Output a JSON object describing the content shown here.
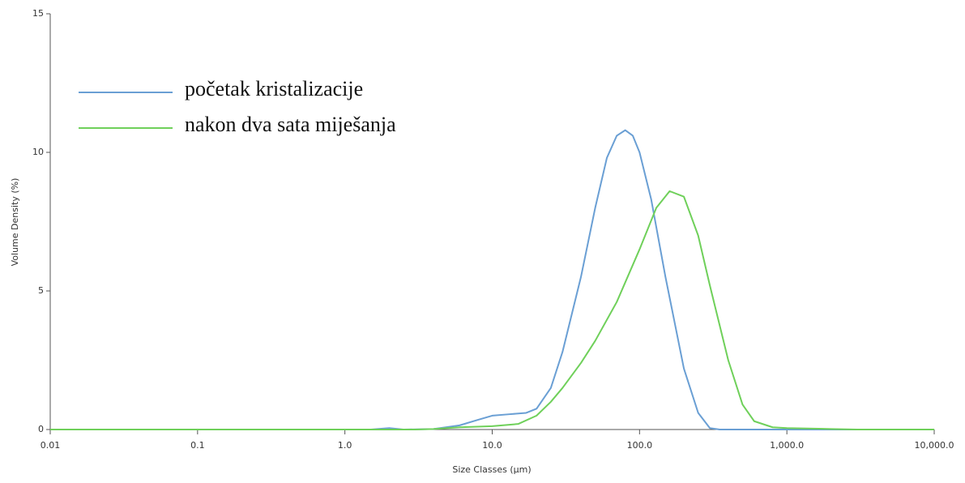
{
  "chart_data": {
    "type": "line",
    "x_label": "Size Classes (µm)",
    "y_label": "Volume Density (%)",
    "x_log": true,
    "xlim": [
      0.01,
      10000
    ],
    "ylim": [
      0,
      15
    ],
    "xticks": [
      0.01,
      0.1,
      {
        "value": 1,
        "label": "1.0"
      },
      {
        "value": 10,
        "label": "10.0"
      },
      {
        "value": 100,
        "label": "100.0"
      },
      {
        "value": 1000,
        "label": "1,000.0"
      },
      {
        "value": 10000,
        "label": "10,000.0"
      }
    ],
    "yticks": [
      0,
      5,
      10,
      15
    ],
    "legend": "upper left",
    "series": [
      {
        "name": "početak kristalizacije",
        "color": "#6a9fd4",
        "x": [
          0.01,
          1.5,
          2,
          2.5,
          4,
          6,
          8,
          10,
          13,
          17,
          20,
          25,
          30,
          40,
          50,
          60,
          70,
          80,
          90,
          100,
          120,
          150,
          200,
          250,
          300,
          350,
          10000
        ],
        "values": [
          0,
          0,
          0.05,
          0,
          0.02,
          0.15,
          0.35,
          0.5,
          0.55,
          0.6,
          0.75,
          1.5,
          2.8,
          5.5,
          8,
          9.8,
          10.6,
          10.8,
          10.6,
          10,
          8.3,
          5.5,
          2.2,
          0.6,
          0.05,
          0,
          0
        ]
      },
      {
        "name": "nakon dva sata miješanja",
        "color": "#6fd05a",
        "x": [
          0.01,
          3,
          4,
          6,
          10,
          15,
          20,
          25,
          30,
          40,
          50,
          70,
          100,
          130,
          160,
          200,
          250,
          300,
          400,
          500,
          600,
          800,
          1000,
          2000,
          3000,
          10000
        ],
        "values": [
          0,
          0,
          0.02,
          0.08,
          0.12,
          0.2,
          0.5,
          1.0,
          1.5,
          2.4,
          3.2,
          4.6,
          6.5,
          8,
          8.6,
          8.4,
          7,
          5.2,
          2.5,
          0.9,
          0.3,
          0.08,
          0.05,
          0.02,
          0,
          0
        ]
      }
    ]
  }
}
